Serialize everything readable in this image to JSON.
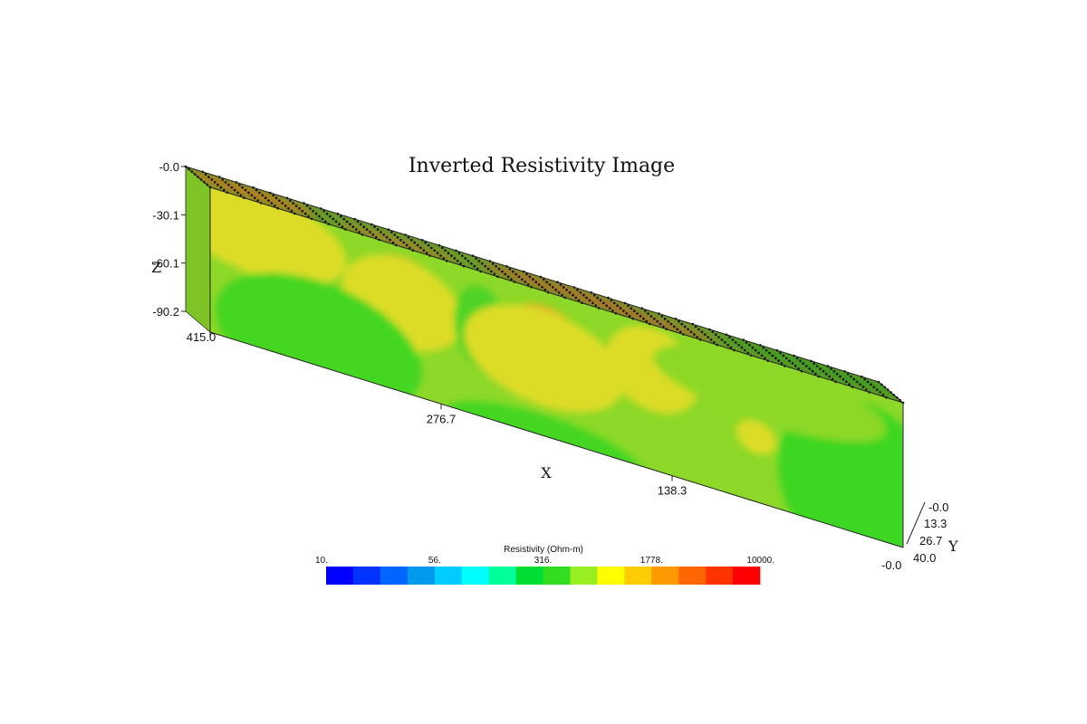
{
  "chart_data": {
    "type": "heatmap",
    "title": "Inverted Resistivity Image",
    "axes": {
      "z": {
        "label": "Z",
        "ticks": [
          "-0.0",
          "-30.1",
          "-60.1",
          "-90.2"
        ],
        "range": [
          -90.2,
          0.0
        ]
      },
      "x": {
        "label": "X",
        "ticks": [
          "415.0",
          "276.7",
          "138.3",
          "-0.0"
        ],
        "range": [
          0.0,
          415.0
        ]
      },
      "y": {
        "label": "Y",
        "ticks": [
          "-0.0",
          "13.3",
          "26.7",
          "40.0"
        ],
        "range": [
          0.0,
          40.0
        ]
      }
    },
    "colorbar": {
      "title": "Resistivity (Ohm-m)",
      "scale": "log",
      "range": [
        10,
        10000
      ],
      "tick_labels": [
        "10.",
        "56.",
        "316.",
        "1778.",
        "10000."
      ],
      "colors": [
        "#0000ff",
        "#0033ff",
        "#0066ff",
        "#0099ee",
        "#00ccff",
        "#00ffff",
        "#00ff99",
        "#00dd33",
        "#33dd22",
        "#99ee22",
        "#ffff00",
        "#ffcc00",
        "#ff9900",
        "#ff6600",
        "#ff3300",
        "#ff0000"
      ]
    },
    "background_color": "#8dd828",
    "features": [
      {
        "face": "front",
        "x": 385,
        "z": -8,
        "rx": 30,
        "rz": 16,
        "color": "#e2b020"
      },
      {
        "face": "front",
        "x": 385,
        "z": -20,
        "rx": 52,
        "rz": 26,
        "color": "#dcdc28"
      },
      {
        "face": "front",
        "x": 300,
        "z": -22,
        "rx": 22,
        "rz": 16,
        "color": "#e8b424"
      },
      {
        "face": "front",
        "x": 300,
        "z": -35,
        "rx": 36,
        "rz": 28,
        "color": "#dcdc28"
      },
      {
        "face": "front",
        "x": 253,
        "z": -35,
        "rx": 16,
        "rz": 26,
        "color": "#4fd328"
      },
      {
        "face": "front",
        "x": 215,
        "z": -25,
        "rx": 22,
        "rz": 16,
        "color": "#e8b424"
      },
      {
        "face": "front",
        "x": 215,
        "z": -42,
        "rx": 48,
        "rz": 30,
        "color": "#dcdc28"
      },
      {
        "face": "front",
        "x": 150,
        "z": -28,
        "rx": 28,
        "rz": 26,
        "color": "#dcdc28"
      },
      {
        "face": "front",
        "x": 88,
        "z": -50,
        "rx": 12,
        "rz": 10,
        "color": "#dcdc28"
      },
      {
        "face": "front",
        "x": 350,
        "z": -75,
        "rx": 62,
        "rz": 38,
        "color": "#44d624"
      },
      {
        "face": "front",
        "x": 215,
        "z": -95,
        "rx": 60,
        "rz": 18,
        "color": "#44d624"
      },
      {
        "face": "front",
        "x": 25,
        "z": -62,
        "rx": 50,
        "rz": 55,
        "color": "#3ed620"
      },
      {
        "face": "front",
        "x": 80,
        "z": -20,
        "rx": 70,
        "rz": 20,
        "color": "#8dd828"
      },
      {
        "face": "top",
        "x": 385,
        "y": 20,
        "rx": 40,
        "ry": 18,
        "color": "#c07a1e"
      },
      {
        "face": "top",
        "x": 300,
        "y": 8,
        "rx": 35,
        "ry": 14,
        "color": "#a8842a"
      },
      {
        "face": "top",
        "x": 195,
        "y": 20,
        "rx": 50,
        "ry": 18,
        "color": "#b07228"
      },
      {
        "face": "top",
        "x": 150,
        "y": 12,
        "rx": 40,
        "ry": 14,
        "color": "#b07228"
      },
      {
        "face": "top",
        "x": 40,
        "y": 24,
        "rx": 60,
        "ry": 18,
        "color": "#3a9a22"
      }
    ],
    "top_face_base_color": "#6a9a2a",
    "side_face_color": "#7fc426",
    "electrode_grid": {
      "x_count": 42,
      "y_count": 9
    },
    "grid": false
  }
}
